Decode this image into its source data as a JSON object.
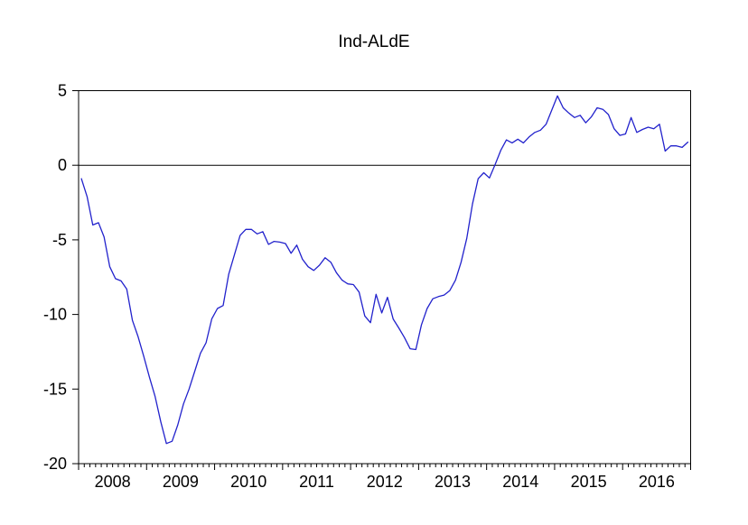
{
  "chart_data": {
    "type": "line",
    "title": "Ind-ALdE",
    "xlabel": "",
    "ylabel": "",
    "ylim": [
      -20,
      5
    ],
    "y_ticks": [
      5,
      0,
      -5,
      -10,
      -15,
      -20
    ],
    "x_tick_labels": [
      "2008",
      "2009",
      "2010",
      "2011",
      "2012",
      "2013",
      "2014",
      "2015",
      "2016"
    ],
    "grid": false,
    "legend": "none",
    "zero_line": true,
    "background_color": "#ffffff",
    "axis_color": "#000000",
    "series": [
      {
        "name": "Ind-ALdE",
        "color": "#2222cc",
        "frequency": "monthly",
        "start": "2008M01",
        "end": "2016M12",
        "values": [
          -0.9,
          -2.1,
          -4.0,
          -3.85,
          -4.8,
          -6.8,
          -7.6,
          -7.75,
          -8.3,
          -10.4,
          -11.5,
          -12.8,
          -14.2,
          -15.5,
          -17.2,
          -18.65,
          -18.5,
          -17.4,
          -16.0,
          -15.0,
          -13.8,
          -12.6,
          -11.9,
          -10.3,
          -9.6,
          -9.4,
          -7.3,
          -6.0,
          -4.7,
          -4.3,
          -4.3,
          -4.6,
          -4.45,
          -5.3,
          -5.1,
          -5.15,
          -5.25,
          -5.9,
          -5.35,
          -6.3,
          -6.8,
          -7.05,
          -6.7,
          -6.2,
          -6.5,
          -7.2,
          -7.7,
          -7.95,
          -8.0,
          -8.5,
          -10.1,
          -10.55,
          -8.65,
          -9.9,
          -8.85,
          -10.3,
          -10.9,
          -11.55,
          -12.3,
          -12.35,
          -10.7,
          -9.6,
          -8.95,
          -8.8,
          -8.7,
          -8.4,
          -7.7,
          -6.5,
          -4.9,
          -2.6,
          -0.9,
          -0.5,
          -0.85,
          0.05,
          1.0,
          1.7,
          1.5,
          1.75,
          1.5,
          1.9,
          2.2,
          2.35,
          2.75,
          3.7,
          4.65,
          3.85,
          3.5,
          3.2,
          3.35,
          2.85,
          3.25,
          3.85,
          3.75,
          3.4,
          2.45,
          2.0,
          2.1,
          3.2,
          2.2,
          2.4,
          2.55,
          2.45,
          2.75,
          0.95,
          1.3,
          1.3,
          1.2,
          1.55
        ]
      }
    ]
  }
}
